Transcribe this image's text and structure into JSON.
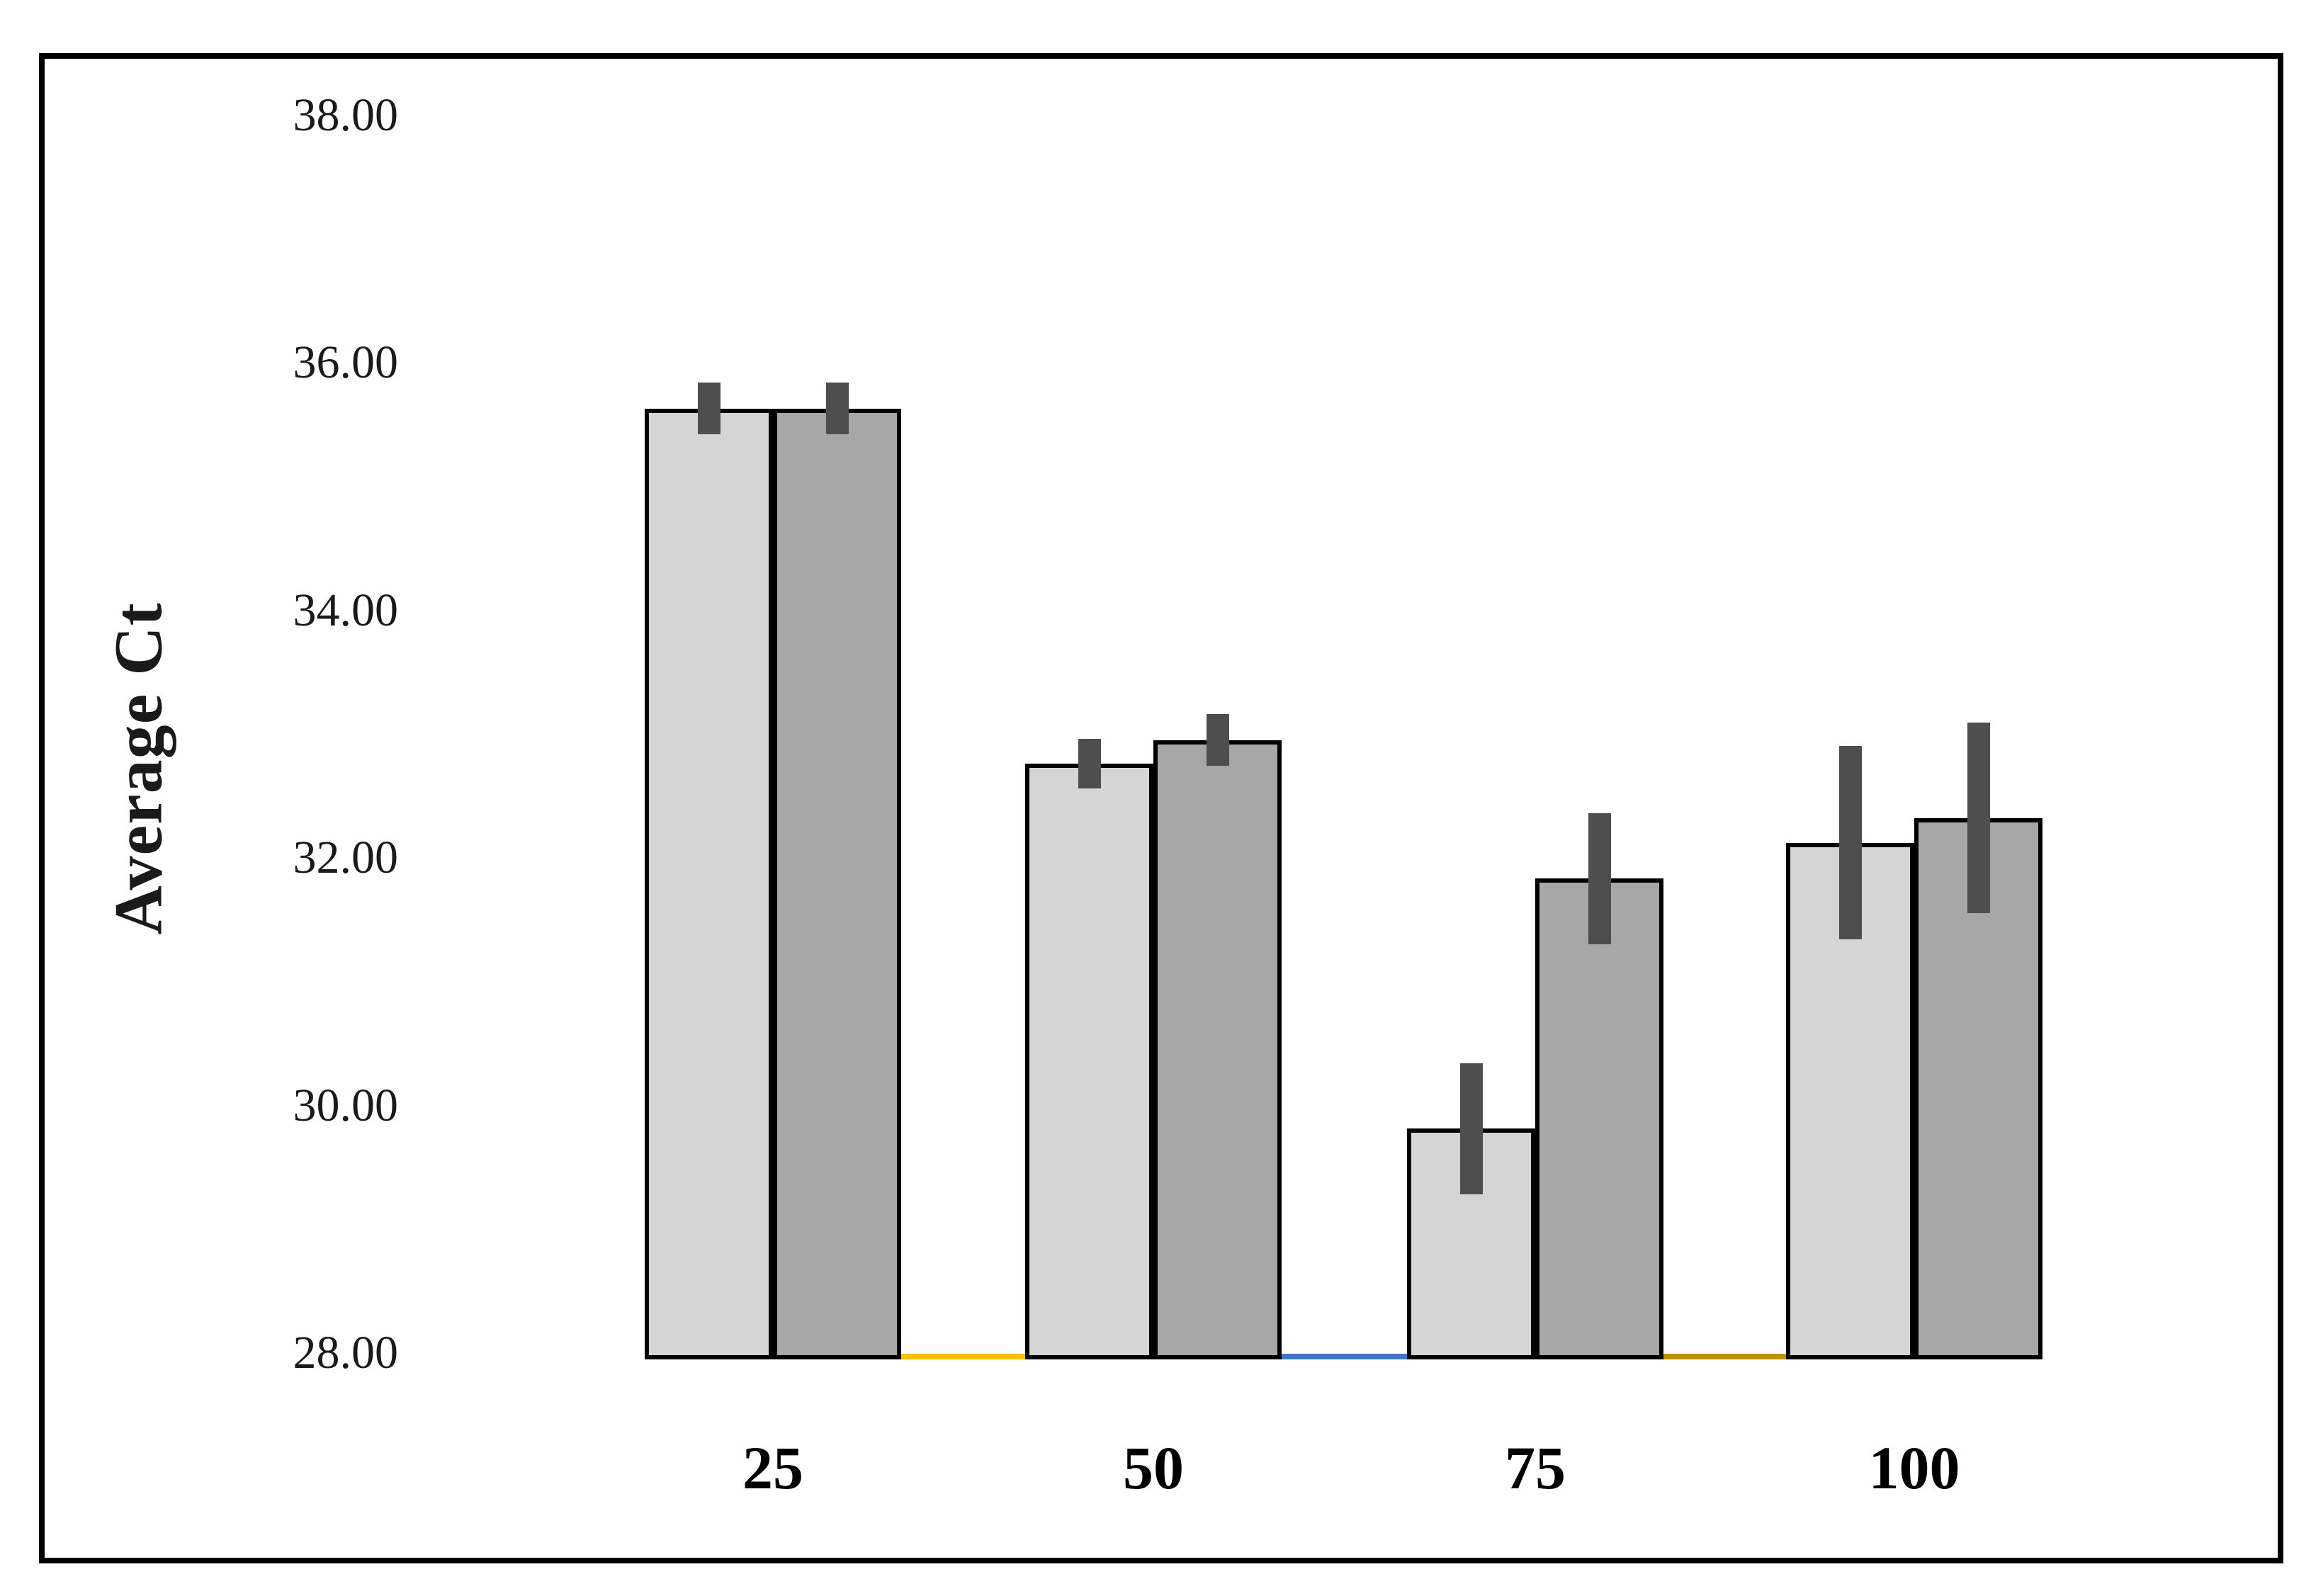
{
  "chart_data": {
    "type": "bar",
    "title": "",
    "xlabel": "",
    "ylabel": "Average Ct",
    "categories": [
      "25",
      "50",
      "75",
      "100"
    ],
    "series": [
      {
        "name": "light-gray-series",
        "color": "#D5D5D5",
        "values": [
          35.65,
          32.78,
          29.83,
          32.14
        ],
        "error_bars": [
          0.21,
          0.2,
          0.53,
          0.78
        ]
      },
      {
        "name": "dark-gray-series",
        "color": "#A7A7A7",
        "values": [
          35.65,
          32.97,
          31.85,
          32.34
        ],
        "error_bars": [
          0.21,
          0.21,
          0.53,
          0.77
        ]
      }
    ],
    "ylim": [
      28,
      38
    ],
    "ytick_step": 2,
    "yticks": [
      {
        "value": 38,
        "label": "38.00"
      },
      {
        "value": 36,
        "label": "36.00"
      },
      {
        "value": 34,
        "label": "34.00"
      },
      {
        "value": 32,
        "label": "32.00"
      },
      {
        "value": 30,
        "label": "30.00"
      },
      {
        "value": 28,
        "label": "28.00"
      }
    ],
    "grid": false,
    "legend": "none",
    "bar_border_color": "#000000",
    "error_bar_color": "#4E4E4E",
    "baseline_segments": [
      {
        "gap_between": [
          "25",
          "50"
        ],
        "color": "#FFC000"
      },
      {
        "gap_between": [
          "50",
          "75"
        ],
        "color": "#4472C4"
      },
      {
        "gap_between": [
          "75",
          "100"
        ],
        "color": "#BF9000"
      }
    ]
  }
}
